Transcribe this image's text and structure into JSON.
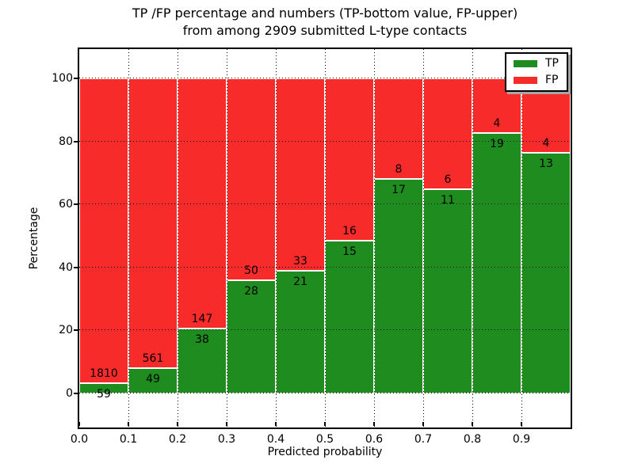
{
  "title": {
    "line1": "TP /FP percentage and numbers (TP-bottom value, FP-upper)",
    "line2": "from among 2909 submitted L-type contacts"
  },
  "axes": {
    "x_label": "Predicted probability",
    "y_label": "Percentage",
    "x_tick_labels": [
      "0.0",
      "0.1",
      "0.2",
      "0.3",
      "0.4",
      "0.5",
      "0.6",
      "0.7",
      "0.8",
      "0.9"
    ],
    "y_tick_labels": [
      "0",
      "20",
      "40",
      "60",
      "80",
      "100"
    ],
    "y_tick_values": [
      0,
      20,
      40,
      60,
      80,
      100
    ]
  },
  "legend": {
    "entries": [
      {
        "label": "TP",
        "color": "#1e8c1e"
      },
      {
        "label": "FP",
        "color": "#f82b2b"
      }
    ]
  },
  "colors": {
    "tp": "#1e8c1e",
    "fp": "#f82b2b",
    "edge": "#ffffff",
    "grid": "#000000"
  },
  "chart_data": {
    "type": "bar",
    "stacked": true,
    "normalized_to_percent": true,
    "title": "TP /FP percentage and numbers (TP-bottom value, FP-upper) from among 2909 submitted L-type contacts",
    "xlabel": "Predicted probability",
    "ylabel": "Percentage",
    "total_contacts": 2909,
    "grid": true,
    "legend_position": "upper right",
    "x_bin_edges": [
      0.0,
      0.1,
      0.2,
      0.3,
      0.4,
      0.5,
      0.6,
      0.7,
      0.8,
      0.9,
      1.0
    ],
    "categories": [
      "0.0-0.1",
      "0.1-0.2",
      "0.2-0.3",
      "0.3-0.4",
      "0.4-0.5",
      "0.5-0.6",
      "0.6-0.7",
      "0.7-0.8",
      "0.8-0.9",
      "0.9-1.0"
    ],
    "series": [
      {
        "name": "TP",
        "values": [
          59,
          49,
          38,
          28,
          21,
          15,
          17,
          11,
          19,
          13
        ]
      },
      {
        "name": "FP",
        "values": [
          1810,
          561,
          147,
          50,
          33,
          16,
          8,
          6,
          4,
          4
        ]
      }
    ],
    "tp_percent": [
      3.2,
      8.0,
      20.5,
      35.9,
      38.9,
      48.4,
      68.0,
      64.7,
      82.6,
      76.5
    ],
    "xlim": [
      0.0,
      1.0
    ],
    "ylim_percent": [
      0,
      100
    ]
  }
}
